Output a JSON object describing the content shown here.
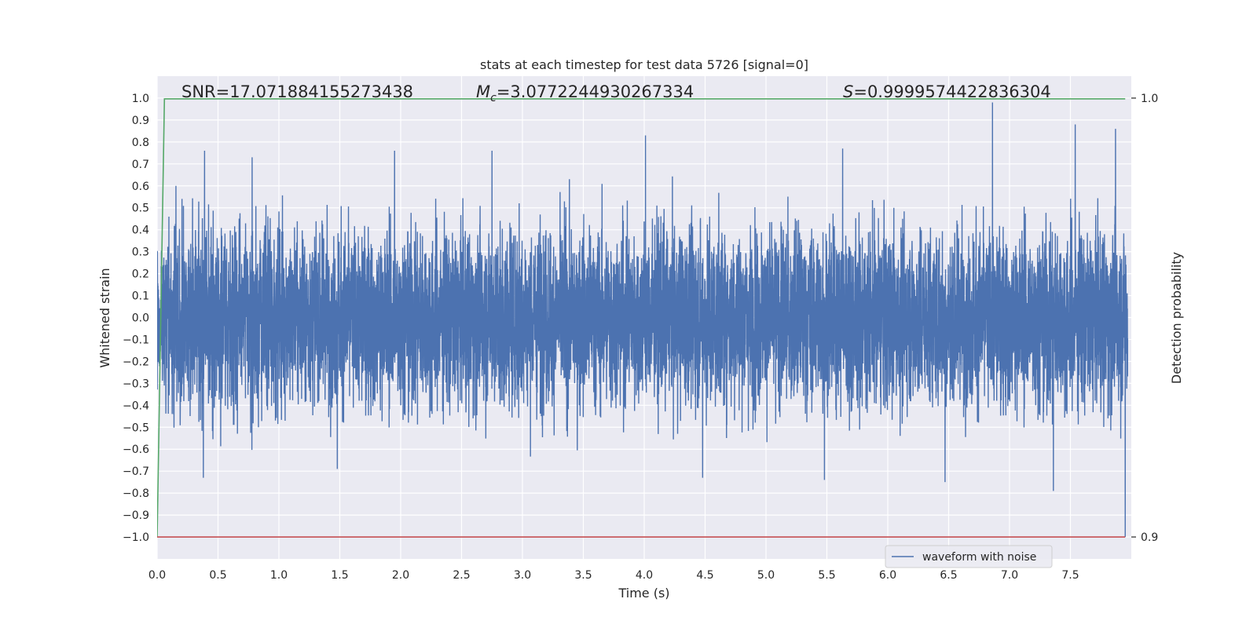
{
  "chart_data": {
    "type": "line",
    "title": "stats at each timestep for test data 5726 [signal=0]",
    "xlabel": "Time (s)",
    "ylabel": "Whitened strain",
    "y2label": "Detection probability",
    "xlim": [
      0,
      8
    ],
    "ylim": [
      -1.1,
      1.1
    ],
    "y2lim": [
      0.9,
      1.0
    ],
    "xticks": [
      0.0,
      0.5,
      1.0,
      1.5,
      2.0,
      2.5,
      3.0,
      3.5,
      4.0,
      4.5,
      5.0,
      5.5,
      6.0,
      6.5,
      7.0,
      7.5
    ],
    "xtick_labels": [
      "0.0",
      "0.5",
      "1.0",
      "1.5",
      "2.0",
      "2.5",
      "3.0",
      "3.5",
      "4.0",
      "4.5",
      "5.0",
      "5.5",
      "6.0",
      "6.5",
      "7.0",
      "7.5"
    ],
    "yticks": [
      1.0,
      0.9,
      0.8,
      0.7,
      0.6,
      0.5,
      0.4,
      0.3,
      0.2,
      0.1,
      0.0,
      -0.1,
      -0.2,
      -0.3,
      -0.4,
      -0.5,
      -0.6,
      -0.7,
      -0.8,
      -0.9,
      -1.0
    ],
    "ytick_labels": [
      "1.0",
      "0.9",
      "0.8",
      "0.7",
      "0.6",
      "0.5",
      "0.4",
      "0.3",
      "0.2",
      "0.1",
      "0.0",
      "−0.1",
      "−0.2",
      "−0.3",
      "−0.4",
      "−0.5",
      "−0.6",
      "−0.7",
      "−0.8",
      "−0.9",
      "−1.0"
    ],
    "y2ticks": [
      1.0,
      0.9
    ],
    "y2tick_labels": [
      "1.0",
      "0.9"
    ],
    "grid": true,
    "legend": {
      "position": "bottom-right",
      "entries": [
        "waveform with noise"
      ]
    },
    "annotations": {
      "snr": "SNR=17.071884155273438",
      "mc": "=3.0772244930267334",
      "mc_symbol": "M",
      "mc_sub": "c",
      "s": "=0.9999574422836304",
      "s_symbol": "S"
    },
    "series": [
      {
        "name": "waveform with noise",
        "color": "#4c72b0",
        "kind": "noise",
        "n_samples": 8000,
        "typical_band": [
          -0.4,
          0.4
        ],
        "spikes": [
          {
            "x": 0.38,
            "y": -0.73
          },
          {
            "x": 0.39,
            "y": 0.76
          },
          {
            "x": 0.78,
            "y": 0.73
          },
          {
            "x": 1.48,
            "y": -0.69
          },
          {
            "x": 1.95,
            "y": 0.76
          },
          {
            "x": 2.75,
            "y": 0.76
          },
          {
            "x": 4.01,
            "y": 0.83
          },
          {
            "x": 4.48,
            "y": -0.73
          },
          {
            "x": 5.48,
            "y": -0.74
          },
          {
            "x": 5.63,
            "y": 0.77
          },
          {
            "x": 6.47,
            "y": -0.75
          },
          {
            "x": 6.86,
            "y": 0.98
          },
          {
            "x": 7.36,
            "y": -0.79
          },
          {
            "x": 7.54,
            "y": 0.88
          },
          {
            "x": 7.87,
            "y": 0.86
          },
          {
            "x": 7.95,
            "y": -1.0
          }
        ]
      },
      {
        "name": "detection probability",
        "color": "#55a868",
        "axis": "y2",
        "x": [
          0.0,
          0.06,
          7.95
        ],
        "y": [
          0.9,
          0.99982,
          0.99982
        ]
      },
      {
        "name": "baseline",
        "color": "#c44e52",
        "x": [
          0.0,
          7.95
        ],
        "y": [
          -1.0,
          -1.0
        ]
      }
    ],
    "colors": {
      "background": "#eaeaf2",
      "grid": "#ffffff",
      "text": "#262626"
    }
  }
}
